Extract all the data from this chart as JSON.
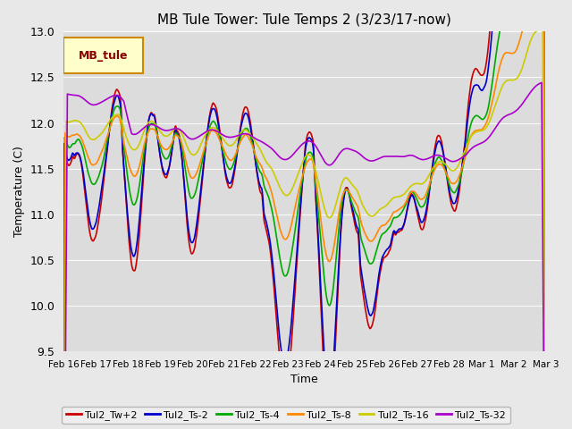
{
  "title": "MB Tule Tower: Tule Temps 2 (3/23/17-now)",
  "ylabel": "Temperature (C)",
  "xlabel": "Time",
  "ylim": [
    9.5,
    13.0
  ],
  "background_color": "#e8e8e8",
  "plot_bg_color": "#dcdcdc",
  "series": {
    "Tul2_Tw+2": {
      "color": "#cc0000",
      "lw": 1.2
    },
    "Tul2_Ts-2": {
      "color": "#0000cc",
      "lw": 1.2
    },
    "Tul2_Ts-4": {
      "color": "#00aa00",
      "lw": 1.2
    },
    "Tul2_Ts-8": {
      "color": "#ff8800",
      "lw": 1.2
    },
    "Tul2_Ts-16": {
      "color": "#cccc00",
      "lw": 1.2
    },
    "Tul2_Ts-32": {
      "color": "#aa00cc",
      "lw": 1.2
    }
  },
  "legend_label": "MB_tule",
  "legend_bg": "#ffffcc",
  "legend_border": "#cc8800",
  "tick_labels": [
    "Feb 16",
    "Feb 17",
    "Feb 18",
    "Feb 19",
    "Feb 20",
    "Feb 21",
    "Feb 22",
    "Feb 23",
    "Feb 24",
    "Feb 25",
    "Feb 26",
    "Feb 27",
    "Feb 28",
    "Mar 1",
    "Mar 2",
    "Mar 3"
  ],
  "yticks": [
    9.5,
    10.0,
    10.5,
    11.0,
    11.5,
    12.0,
    12.5,
    13.0
  ]
}
